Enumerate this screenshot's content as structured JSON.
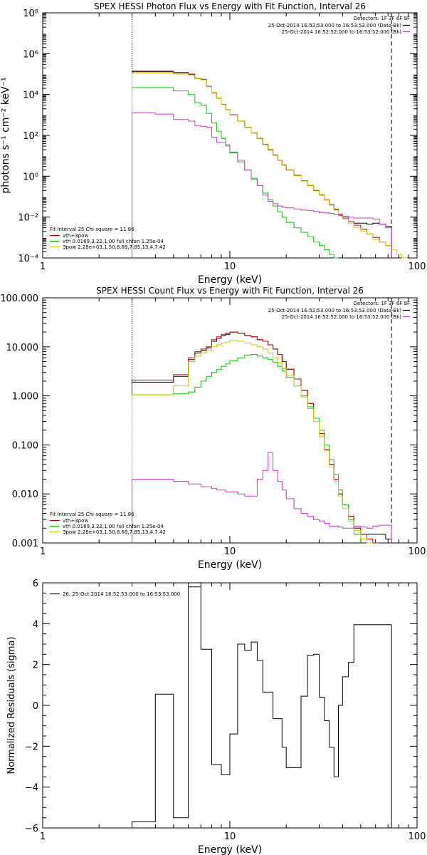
{
  "chart_data": [
    {
      "type": "line",
      "step": true,
      "title": "SPEX HESSI Photon Flux vs Energy with Fit Function, Interval 26",
      "xlabel": "Energy (keV)",
      "ylabel": "photons s⁻¹ cm⁻² keV⁻¹",
      "xscale": "log",
      "yscale": "log",
      "xlim": [
        1,
        100
      ],
      "ylim": [
        0.0001,
        100000000
      ],
      "xticks": [
        1,
        10,
        100
      ],
      "xtick_labels": [
        "1",
        "10",
        "100"
      ],
      "yticks": [
        0.0001,
        0.01,
        1,
        100,
        10000,
        1000000,
        100000000
      ],
      "ytick_labels": [
        "10⁻⁴",
        "10⁻²",
        "10⁰",
        "10²",
        "10⁴",
        "10⁶",
        "10⁸"
      ],
      "vlines": [
        {
          "x": 3.0,
          "style": "dotted",
          "color": "#000000"
        },
        {
          "x": 73,
          "style": "dashed",
          "color": "#000000"
        }
      ],
      "legend_top": {
        "title": "Detectors: 1F 3F 6F 9F",
        "entries": [
          {
            "text": "25-Oct-2014 16:52:53.000 to 16:53:53.000 (Data-Bk)",
            "color": "#000000"
          },
          {
            "text": "25-Oct-2014 16:52:52.000 to 16:53:52.000 (Bk)",
            "color": "#cc33cc"
          }
        ]
      },
      "legend_bottom": {
        "title": "Fit Interval 25   Chi-square = 11.86",
        "entries": [
          {
            "text": "vth+3pow",
            "color": "#cc0000"
          },
          {
            "text": "vth 0.0169,3.22,1.00  full chfan 1.25e-04",
            "color": "#00cc00"
          },
          {
            "text": "3pow 2.28e+03,1.50,8.69,7.85,13.4,7.42",
            "color": "#cccc00"
          }
        ]
      },
      "bin_edges": [
        3,
        4,
        5,
        6,
        6.5,
        7,
        7.5,
        8,
        8.5,
        9,
        9.5,
        10,
        11,
        12,
        13,
        14,
        15,
        16,
        17,
        18,
        19,
        20,
        22,
        24,
        26,
        28,
        30,
        32,
        34,
        36,
        38,
        40,
        43,
        46,
        50,
        54,
        58,
        63,
        68,
        73,
        78,
        83,
        89,
        95,
        100
      ],
      "series": [
        {
          "name": "Data-Bk",
          "color": "#000000",
          "values": [
            130000,
            130000,
            115000,
            95000,
            60000,
            55000,
            25000,
            12000,
            6500,
            3300,
            1800,
            1000,
            500,
            250,
            130,
            70,
            36,
            20,
            11,
            6,
            3.5,
            2,
            1.1,
            0.6,
            0.35,
            0.2,
            0.12,
            0.07,
            0.04,
            0.024,
            0.014,
            0.009,
            0.006,
            0.005,
            0.005,
            0.0045,
            0.005,
            0.0045,
            0.0035,
            null,
            null,
            null,
            null,
            null
          ]
        },
        {
          "name": "vth+3pow",
          "color": "#cc0000",
          "values": [
            140000,
            140000,
            120000,
            100000,
            62000,
            55000,
            25000,
            12000,
            6500,
            3300,
            1800,
            1000,
            500,
            250,
            130,
            70,
            36,
            20,
            11,
            6,
            3.5,
            2,
            1.1,
            0.6,
            0.35,
            0.2,
            0.12,
            0.07,
            0.04,
            0.024,
            0.014,
            0.009,
            0.006,
            0.004,
            0.0025,
            0.0015,
            0.001,
            0.0006,
            0.0004,
            null,
            null,
            null,
            null,
            null
          ]
        },
        {
          "name": "vth",
          "color": "#00cc00",
          "values": [
            22000,
            22000,
            15000,
            10000,
            4000,
            3000,
            1200,
            400,
            160,
            70,
            30,
            14,
            5,
            2,
            0.8,
            0.35,
            0.15,
            0.07,
            0.035,
            0.018,
            0.01,
            0.0055,
            0.003,
            0.0018,
            0.0011,
            0.0006,
            0.0004,
            0.00025,
            0.00015,
            0.0001,
            null,
            null,
            null,
            null,
            null,
            null,
            null,
            null,
            null,
            null,
            null,
            null,
            null,
            null
          ]
        },
        {
          "name": "3pow",
          "color": "#cccc00",
          "values": [
            110000,
            110000,
            100000,
            90000,
            60000,
            52000,
            24000,
            11500,
            6300,
            3200,
            1750,
            980,
            490,
            245,
            128,
            68,
            35,
            19,
            10.5,
            5.8,
            3.4,
            1.95,
            1.05,
            0.58,
            0.34,
            0.19,
            0.115,
            0.068,
            0.038,
            0.022,
            0.013,
            0.008,
            0.005,
            0.003,
            0.002,
            0.0015,
            0.0008,
            0.0006,
            0.0004,
            0.00025,
            0.00015,
            0.0001,
            null,
            null
          ]
        },
        {
          "name": "Bk",
          "color": "#cc33cc",
          "values": [
            1300,
            1100,
            600,
            500,
            300,
            280,
            250,
            80,
            45,
            45,
            35,
            15,
            6,
            2,
            0.7,
            0.35,
            0.12,
            0.06,
            0.045,
            0.035,
            0.03,
            0.028,
            0.025,
            0.022,
            0.021,
            0.019,
            0.017,
            0.016,
            0.015,
            0.013,
            0.012,
            0.011,
            0.01,
            0.009,
            0.009,
            0.009,
            0.008,
            0.0045,
            0.003,
            null,
            null,
            null,
            null,
            null
          ]
        }
      ]
    },
    {
      "type": "line",
      "step": true,
      "title": "SPEX HESSI Count Flux vs Energy with Fit Function, Interval 26",
      "xlabel": "Energy (keV)",
      "ylabel": "",
      "xscale": "log",
      "yscale": "log",
      "xlim": [
        1,
        100
      ],
      "ylim": [
        0.001,
        100
      ],
      "xticks": [
        1,
        10,
        100
      ],
      "xtick_labels": [
        "1",
        "10",
        "100"
      ],
      "yticks": [
        0.001,
        0.01,
        0.1,
        1,
        10,
        100
      ],
      "ytick_labels": [
        "0.001",
        "0.010",
        "0.100",
        "1.000",
        "10.000",
        "100.000"
      ],
      "vlines": [
        {
          "x": 3.0,
          "style": "dotted",
          "color": "#000000"
        },
        {
          "x": 73,
          "style": "dashed",
          "color": "#000000"
        }
      ],
      "legend_top": {
        "title": "Detectors: 1F 3F 6F 9F",
        "entries": [
          {
            "text": "25-Oct-2014 16:52:53.000 to 16:53:53.000 (Data-Bk)",
            "color": "#000000"
          },
          {
            "text": "25-Oct-2014 16:52:52.000 to 16:53:52.000 (Bk)",
            "color": "#cc33cc"
          }
        ]
      },
      "legend_bottom": {
        "title": "Fit Interval 25   Chi-square = 11.86",
        "entries": [
          {
            "text": "vth+3pow",
            "color": "#cc0000"
          },
          {
            "text": "vth 0.0169,3.22,1.00  full chfan 1.25e-04",
            "color": "#00cc00"
          },
          {
            "text": "3pow 2.28e+03,1.50,8.69,7.85,13.4,7.42",
            "color": "#cccc00"
          }
        ]
      },
      "bin_edges": [
        3,
        4,
        5,
        6,
        6.5,
        7,
        7.5,
        8,
        8.5,
        9,
        9.5,
        10,
        11,
        12,
        13,
        14,
        15,
        16,
        17,
        18,
        19,
        20,
        22,
        24,
        26,
        28,
        30,
        32,
        34,
        36,
        38,
        40,
        43,
        46,
        50,
        54,
        58,
        63,
        68,
        73,
        78,
        83,
        89,
        95,
        100
      ],
      "series": [
        {
          "name": "Data-Bk",
          "color": "#000000",
          "values": [
            1.9,
            1.9,
            2.5,
            5.5,
            7.5,
            8.5,
            9.5,
            13,
            15,
            17,
            18,
            20,
            19,
            17,
            16,
            14,
            13,
            11,
            9,
            7,
            5,
            3.5,
            2.2,
            1.3,
            0.7,
            0.35,
            0.17,
            0.08,
            0.04,
            0.02,
            0.01,
            0.006,
            0.0035,
            0.002,
            0.0015,
            0.0015,
            0.0015,
            0.0015,
            0.0012,
            null,
            null,
            null,
            null,
            null
          ]
        },
        {
          "name": "vth+3pow",
          "color": "#cc0000",
          "values": [
            2.1,
            2.1,
            2.7,
            6,
            8,
            9,
            10,
            14,
            16,
            18,
            19,
            20,
            19,
            17,
            16,
            14,
            13,
            11,
            9,
            7,
            5,
            3.5,
            2.2,
            1.3,
            0.7,
            0.35,
            0.17,
            0.08,
            0.04,
            0.02,
            0.01,
            0.006,
            0.0035,
            0.002,
            0.0015,
            0.0012,
            0.001,
            null,
            null,
            null,
            null,
            null,
            null,
            null
          ]
        },
        {
          "name": "vth",
          "color": "#00cc00",
          "values": [
            1.05,
            1.05,
            1.1,
            1.2,
            1.5,
            2.0,
            2.5,
            3.0,
            3.5,
            4.0,
            4.5,
            5.2,
            6,
            6.8,
            7,
            6.5,
            6,
            5.5,
            4.8,
            4,
            3.2,
            2.4,
            1.6,
            1.0,
            0.6,
            0.35,
            0.2,
            0.1,
            0.05,
            0.025,
            0.012,
            0.006,
            0.003,
            0.0015,
            null,
            null,
            null,
            null,
            null,
            null,
            null,
            null,
            null,
            null
          ]
        },
        {
          "name": "3pow",
          "color": "#cccc00",
          "values": [
            1.05,
            1.05,
            1.6,
            5.0,
            6.5,
            7.5,
            8.5,
            10,
            11,
            12,
            12.5,
            13.5,
            13,
            12,
            11,
            10,
            9,
            7.5,
            6,
            4.8,
            3.6,
            2.6,
            1.6,
            0.95,
            0.55,
            0.3,
            0.15,
            0.075,
            0.035,
            0.018,
            0.009,
            0.005,
            0.0028,
            0.0018,
            0.0012,
            0.001,
            null,
            null,
            null,
            null,
            null,
            null,
            null,
            null
          ]
        },
        {
          "name": "Bk",
          "color": "#cc33cc",
          "values": [
            0.02,
            0.02,
            0.018,
            0.016,
            0.016,
            0.014,
            0.014,
            0.013,
            0.012,
            0.012,
            0.011,
            0.011,
            0.01,
            0.009,
            0.009,
            0.02,
            0.03,
            0.07,
            0.03,
            0.018,
            0.012,
            0.008,
            0.005,
            0.004,
            0.0035,
            0.003,
            0.0028,
            0.0025,
            0.0022,
            0.0022,
            0.0021,
            0.002,
            0.002,
            0.0022,
            0.0021,
            0.002,
            0.0022,
            0.0023,
            0.0023,
            null,
            null,
            null,
            null,
            null
          ]
        }
      ]
    },
    {
      "type": "line",
      "step": true,
      "title": "",
      "xlabel": "Energy (keV)",
      "ylabel": "Normalized Residuals (sigma)",
      "xscale": "log",
      "yscale": "linear",
      "xlim": [
        1,
        100
      ],
      "ylim": [
        -6,
        6
      ],
      "xticks": [
        1,
        10,
        100
      ],
      "xtick_labels": [
        "1",
        "10",
        "100"
      ],
      "yticks": [
        -6,
        -4,
        -2,
        0,
        2,
        4,
        6
      ],
      "ytick_labels": [
        "−6",
        "−4",
        "−2",
        "0",
        "2",
        "4",
        "6"
      ],
      "legend": "26, 25-Oct-2014 16:52:53.000 to 16:53:53.000",
      "bin_edges": [
        3,
        4,
        5,
        6,
        7,
        7.5,
        8,
        9,
        10,
        11,
        12,
        13,
        14,
        15,
        17,
        18,
        19,
        20,
        22,
        24,
        26,
        28,
        30,
        32,
        34,
        36,
        38,
        40,
        43,
        46,
        50,
        54,
        58,
        63,
        68,
        73
      ],
      "series": [
        {
          "name": "26",
          "color": "#000000",
          "values": [
            -5.7,
            0.55,
            -5.5,
            5.8,
            2.75,
            2.75,
            -2.9,
            -3.4,
            -1.4,
            3.0,
            2.7,
            3.1,
            2.2,
            0.65,
            -0.65,
            -0.65,
            -2.05,
            -3.05,
            -3.05,
            0.45,
            2.45,
            2.5,
            0.4,
            -0.75,
            -2.05,
            -3.5,
            0.0,
            1.4,
            2.1,
            3.95,
            3.95,
            3.95,
            3.95,
            3.95,
            3.95
          ]
        }
      ]
    }
  ]
}
